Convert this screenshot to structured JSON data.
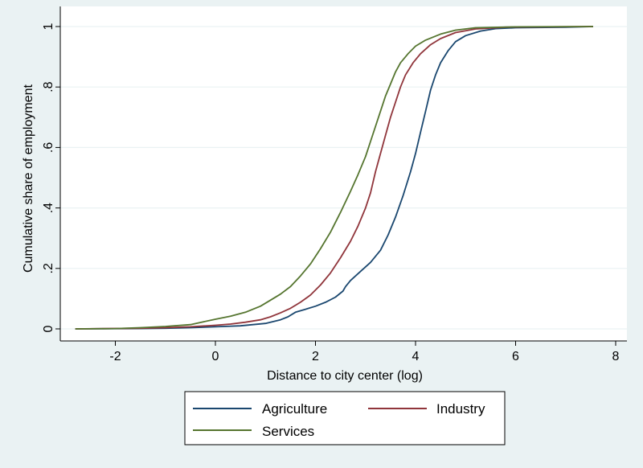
{
  "chart_data": {
    "type": "line",
    "title": "",
    "xlabel": "Distance to city center (log)",
    "ylabel": "Cumulative share of employment",
    "xlim": [
      -2.9,
      8.2
    ],
    "ylim": [
      0,
      1
    ],
    "xticks": [
      -2,
      0,
      2,
      4,
      6,
      8
    ],
    "xtick_labels": [
      "-2",
      "0",
      "2",
      "4",
      "6",
      "8"
    ],
    "yticks": [
      0,
      0.2,
      0.4,
      0.6,
      0.8,
      1
    ],
    "ytick_labels": [
      "0",
      ".2",
      ".4",
      ".6",
      ".8",
      "1"
    ],
    "grid": "horizontal",
    "legend_position": "bottom",
    "series": [
      {
        "name": "Agriculture",
        "color": "#1a476f",
        "points": [
          [
            -2.8,
            0
          ],
          [
            -1.5,
            0.001
          ],
          [
            -1,
            0.002
          ],
          [
            -0.5,
            0.004
          ],
          [
            0,
            0.007
          ],
          [
            0.5,
            0.01
          ],
          [
            1,
            0.018
          ],
          [
            1.2,
            0.026
          ],
          [
            1.3,
            0.03
          ],
          [
            1.45,
            0.04
          ],
          [
            1.6,
            0.055
          ],
          [
            1.8,
            0.065
          ],
          [
            2,
            0.075
          ],
          [
            2.2,
            0.088
          ],
          [
            2.4,
            0.105
          ],
          [
            2.55,
            0.125
          ],
          [
            2.6,
            0.14
          ],
          [
            2.7,
            0.16
          ],
          [
            2.9,
            0.19
          ],
          [
            3.1,
            0.22
          ],
          [
            3.3,
            0.26
          ],
          [
            3.45,
            0.31
          ],
          [
            3.6,
            0.37
          ],
          [
            3.75,
            0.44
          ],
          [
            3.9,
            0.52
          ],
          [
            4.0,
            0.58
          ],
          [
            4.1,
            0.65
          ],
          [
            4.2,
            0.72
          ],
          [
            4.3,
            0.79
          ],
          [
            4.4,
            0.84
          ],
          [
            4.5,
            0.88
          ],
          [
            4.65,
            0.92
          ],
          [
            4.8,
            0.95
          ],
          [
            5.0,
            0.97
          ],
          [
            5.3,
            0.985
          ],
          [
            5.6,
            0.993
          ],
          [
            6,
            0.996
          ],
          [
            7,
            0.998
          ],
          [
            7.55,
            1
          ]
        ]
      },
      {
        "name": "Industry",
        "color": "#90353b",
        "points": [
          [
            -2.8,
            0
          ],
          [
            -1.5,
            0.002
          ],
          [
            -1,
            0.004
          ],
          [
            -0.5,
            0.007
          ],
          [
            0,
            0.012
          ],
          [
            0.3,
            0.016
          ],
          [
            0.6,
            0.022
          ],
          [
            0.9,
            0.03
          ],
          [
            1.1,
            0.04
          ],
          [
            1.3,
            0.053
          ],
          [
            1.5,
            0.068
          ],
          [
            1.7,
            0.088
          ],
          [
            1.9,
            0.112
          ],
          [
            2.1,
            0.145
          ],
          [
            2.3,
            0.185
          ],
          [
            2.5,
            0.235
          ],
          [
            2.7,
            0.29
          ],
          [
            2.85,
            0.34
          ],
          [
            3.0,
            0.4
          ],
          [
            3.1,
            0.45
          ],
          [
            3.2,
            0.52
          ],
          [
            3.3,
            0.58
          ],
          [
            3.4,
            0.64
          ],
          [
            3.5,
            0.7
          ],
          [
            3.6,
            0.75
          ],
          [
            3.7,
            0.8
          ],
          [
            3.8,
            0.84
          ],
          [
            3.95,
            0.88
          ],
          [
            4.1,
            0.91
          ],
          [
            4.3,
            0.94
          ],
          [
            4.5,
            0.96
          ],
          [
            4.8,
            0.98
          ],
          [
            5.2,
            0.992
          ],
          [
            5.8,
            0.998
          ],
          [
            7.55,
            1
          ]
        ]
      },
      {
        "name": "Services",
        "color": "#55752f",
        "points": [
          [
            -2.8,
            0
          ],
          [
            -2,
            0.001
          ],
          [
            -1.5,
            0.004
          ],
          [
            -1,
            0.008
          ],
          [
            -0.5,
            0.014
          ],
          [
            0,
            0.032
          ],
          [
            0.3,
            0.042
          ],
          [
            0.6,
            0.055
          ],
          [
            0.9,
            0.075
          ],
          [
            1.1,
            0.095
          ],
          [
            1.3,
            0.115
          ],
          [
            1.5,
            0.14
          ],
          [
            1.7,
            0.175
          ],
          [
            1.9,
            0.215
          ],
          [
            2.1,
            0.265
          ],
          [
            2.3,
            0.32
          ],
          [
            2.5,
            0.385
          ],
          [
            2.7,
            0.455
          ],
          [
            2.85,
            0.51
          ],
          [
            3.0,
            0.57
          ],
          [
            3.1,
            0.62
          ],
          [
            3.2,
            0.67
          ],
          [
            3.3,
            0.72
          ],
          [
            3.4,
            0.77
          ],
          [
            3.5,
            0.81
          ],
          [
            3.6,
            0.85
          ],
          [
            3.7,
            0.88
          ],
          [
            3.85,
            0.91
          ],
          [
            4.0,
            0.935
          ],
          [
            4.2,
            0.955
          ],
          [
            4.5,
            0.975
          ],
          [
            4.8,
            0.988
          ],
          [
            5.2,
            0.996
          ],
          [
            6,
            0.999
          ],
          [
            7.55,
            1
          ]
        ]
      }
    ]
  }
}
